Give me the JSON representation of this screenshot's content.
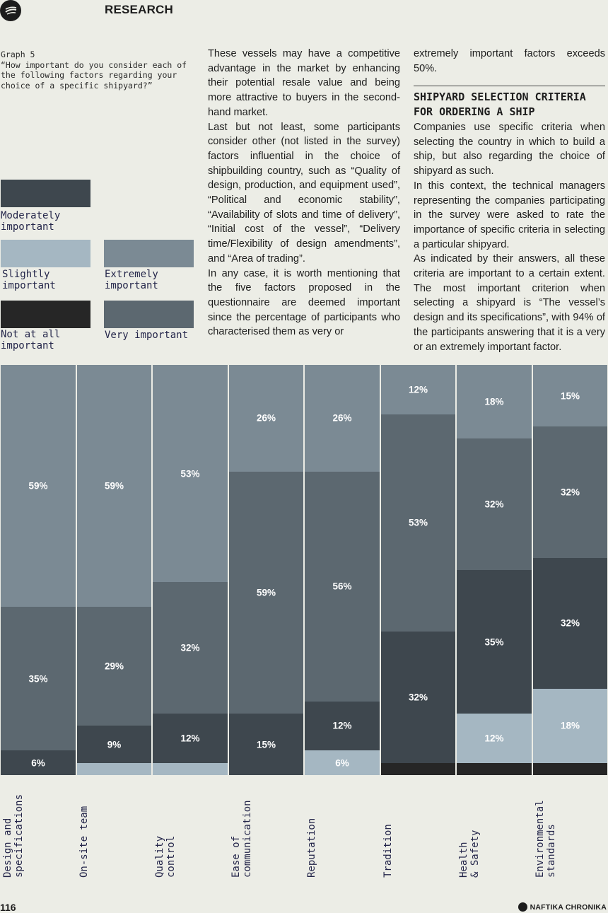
{
  "header": {
    "section": "RESEARCH"
  },
  "graph_caption": {
    "number": "Graph 5",
    "question": "“How important do you consider each of the following factors regarding your choice of a specific shipyard?”"
  },
  "legend": [
    {
      "key": "moderately",
      "label": "Moderately important",
      "color": "#3e474e"
    },
    {
      "key": "slightly",
      "label": "Slightly important",
      "color": "#a5b7c2"
    },
    {
      "key": "extremely",
      "label": "Extremely important",
      "color": "#7b8a94"
    },
    {
      "key": "not_at_all",
      "label": "Not at all important",
      "color": "#262626"
    },
    {
      "key": "very",
      "label": "Very important",
      "color": "#5c6870"
    }
  ],
  "article": {
    "col2": [
      "These vessels may have a competitive advantage in the market by enhancing their potential resale value and being more attractive to buyers in the second-hand market.",
      "Last but not least, some participants consider other (not listed in the survey) factors influential in the choice of shipbuilding country, such as “Quality of design, production, and equipment used”, “Political and economic stability”, “Availability of slots and time of delivery”, “Initial cost of the vessel”, “Delivery time/Flexibility of design amendments”, and “Area of trading”.",
      "In any case, it is worth mentioning that the five factors proposed in the questionnaire are deemed important since the percentage of participants who characterised them as very or"
    ],
    "col3_top": "extremely important factors exceeds 50%.",
    "col3_heading": "SHIPYARD SELECTION CRITERIA FOR ORDERING A SHIP",
    "col3": [
      "Companies use specific criteria when selecting the country in which to build a ship, but also regarding the choice of shipyard as such.",
      "In this context, the technical managers representing the companies participating in the survey were asked to rate the importance of specific criteria in selecting a particular shipyard.",
      "As indicated by their answers, all these criteria are important to a certain extent. The most important criterion when selecting a shipyard is “The vessel’s design and its specifications”, with 94% of the participants answering that it is a very or an extremely important factor."
    ]
  },
  "chart_data": {
    "type": "bar",
    "stacked": true,
    "orientation": "vertical",
    "ylim": [
      0,
      100
    ],
    "categories": [
      "Design and specifications",
      "On-site team",
      "Quality control",
      "Ease of communication",
      "Reputation",
      "Tradition",
      "Health & Safety",
      "Environmental standards"
    ],
    "category_label_lines": [
      [
        "Design and",
        "specifications"
      ],
      [
        "On-site team"
      ],
      [
        "Quality",
        "control"
      ],
      [
        "Ease of",
        "communication"
      ],
      [
        "Reputation"
      ],
      [
        "Tradition"
      ],
      [
        "Health",
        "& Safety"
      ],
      [
        "Environmental",
        "standards"
      ]
    ],
    "stack_order": [
      "not_at_all",
      "slightly",
      "moderately",
      "very",
      "extremely"
    ],
    "series": [
      {
        "key": "not_at_all",
        "name": "Not at all important",
        "values": [
          0,
          0,
          0,
          0,
          0,
          3,
          3,
          3
        ],
        "labels": [
          "",
          "",
          "",
          "",
          "",
          "",
          "",
          ""
        ]
      },
      {
        "key": "slightly",
        "name": "Slightly important",
        "values": [
          0,
          3,
          3,
          0,
          6,
          0,
          12,
          18
        ],
        "labels": [
          "",
          "",
          "",
          "",
          "6%",
          "",
          "12%",
          "18%"
        ]
      },
      {
        "key": "moderately",
        "name": "Moderately important",
        "values": [
          6,
          9,
          12,
          15,
          12,
          32,
          35,
          32
        ],
        "labels": [
          "6%",
          "9%",
          "12%",
          "15%",
          "12%",
          "32%",
          "35%",
          "32%"
        ]
      },
      {
        "key": "very",
        "name": "Very important",
        "values": [
          35,
          29,
          32,
          59,
          56,
          53,
          32,
          32
        ],
        "labels": [
          "35%",
          "29%",
          "32%",
          "59%",
          "56%",
          "53%",
          "32%",
          "32%"
        ]
      },
      {
        "key": "extremely",
        "name": "Extremely important",
        "values": [
          59,
          59,
          53,
          26,
          26,
          12,
          18,
          15
        ],
        "labels": [
          "59%",
          "59%",
          "53%",
          "26%",
          "26%",
          "12%",
          "18%",
          "15%"
        ]
      }
    ]
  },
  "footer": {
    "page_number": "116",
    "brand": "NAFTIKA CHRONIKA"
  }
}
